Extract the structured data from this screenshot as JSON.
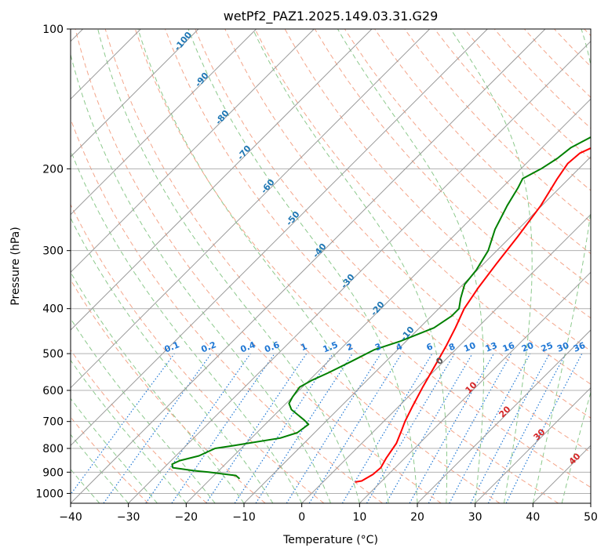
{
  "chart_data": {
    "type": "line",
    "title": "wetPf2_PAZ1.2025.149.03.31.G29",
    "xlabel": "Temperature (°C)",
    "ylabel": "Pressure (hPa)",
    "xlim": [
      -40,
      50
    ],
    "ylim": [
      1050,
      100
    ],
    "y_scale": "log",
    "grid": true,
    "x_ticks": [
      "−40",
      "−30",
      "−20",
      "−10",
      "0",
      "10",
      "20",
      "30",
      "40",
      "50"
    ],
    "y_ticks": [
      100,
      200,
      300,
      400,
      500,
      600,
      700,
      800,
      900,
      1000
    ],
    "isotherm_skew_degrees": 45,
    "series": [
      {
        "color": "#ff0000",
        "points": [
          [
            5.6,
            945
          ],
          [
            6.5,
            940
          ],
          [
            7.3,
            910
          ],
          [
            7.5,
            880
          ],
          [
            6.8,
            840
          ],
          [
            6.0,
            780
          ],
          [
            4.6,
            730
          ],
          [
            3.7,
            700
          ],
          [
            2.4,
            650
          ],
          [
            0.8,
            590
          ],
          [
            -0.8,
            530
          ],
          [
            -2.3,
            480
          ],
          [
            -3.8,
            440
          ],
          [
            -5.6,
            400
          ],
          [
            -6.8,
            360
          ],
          [
            -7.8,
            320
          ],
          [
            -8.8,
            280
          ],
          [
            -10.2,
            240
          ],
          [
            -12.0,
            210
          ],
          [
            -12.8,
            195
          ],
          [
            -12.5,
            185
          ],
          [
            -10.2,
            175
          ],
          [
            -7.5,
            165
          ],
          [
            -4.0,
            150
          ],
          [
            0.0,
            135
          ],
          [
            4.0,
            122
          ],
          [
            8.5,
            112
          ],
          [
            9.5,
            105
          ],
          [
            9.8,
            100
          ]
        ]
      },
      {
        "color": "#008000",
        "points": [
          [
            -15.0,
            930
          ],
          [
            -16.2,
            915
          ],
          [
            -21.5,
            900
          ],
          [
            -24.5,
            893
          ],
          [
            -28.5,
            880
          ],
          [
            -29.2,
            865
          ],
          [
            -28.5,
            850
          ],
          [
            -26.0,
            830
          ],
          [
            -24.5,
            800
          ],
          [
            -22.0,
            790
          ],
          [
            -15.0,
            760
          ],
          [
            -13.0,
            740
          ],
          [
            -12.5,
            710
          ],
          [
            -14.0,
            695
          ],
          [
            -18.0,
            660
          ],
          [
            -19.5,
            640
          ],
          [
            -20.0,
            620
          ],
          [
            -20.5,
            590
          ],
          [
            -19.5,
            570
          ],
          [
            -18.0,
            550
          ],
          [
            -16.0,
            520
          ],
          [
            -14.0,
            490
          ],
          [
            -11.0,
            470
          ],
          [
            -7.5,
            440
          ],
          [
            -6.5,
            415
          ],
          [
            -6.5,
            400
          ],
          [
            -8.0,
            380
          ],
          [
            -9.7,
            355
          ],
          [
            -10.2,
            330
          ],
          [
            -11.5,
            300
          ],
          [
            -14.0,
            270
          ],
          [
            -16.0,
            240
          ],
          [
            -17.2,
            220
          ],
          [
            -18.0,
            210
          ],
          [
            -16.5,
            200
          ],
          [
            -15.5,
            190
          ],
          [
            -15.0,
            180
          ],
          [
            -13.2,
            170
          ],
          [
            -11.3,
            163
          ],
          [
            -9.7,
            155
          ],
          [
            -8.0,
            145
          ],
          [
            -5.5,
            130
          ],
          [
            -2.5,
            118
          ],
          [
            1.0,
            106
          ],
          [
            2.5,
            100
          ]
        ]
      }
    ],
    "dry_adiabat_labels": [
      "-100",
      "-90",
      "-80",
      "-70",
      "-60",
      "-50",
      "-40",
      "-30",
      "-20",
      "-10"
    ],
    "mixing_ratio_labels": [
      "0.1",
      "0.2",
      "0.4",
      "0.6",
      "1",
      "1.5",
      "2",
      "3",
      "4",
      "6",
      "8",
      "10",
      "13",
      "16",
      "20",
      "25",
      "30",
      "36"
    ],
    "moist_adiabat_labels": [
      "0",
      "10",
      "20",
      "30",
      "40"
    ],
    "colors": {
      "temperature": "#ff0000",
      "dewpoint": "#008000",
      "isotherm": "#9a9a9a",
      "dry_adiabat": "#f4a58a",
      "moist_adiabat": "#8cc98c",
      "mixing_ratio": "#1f77d4",
      "adiabat_label": "#1f77b4",
      "moist_label": "#d62728"
    }
  }
}
